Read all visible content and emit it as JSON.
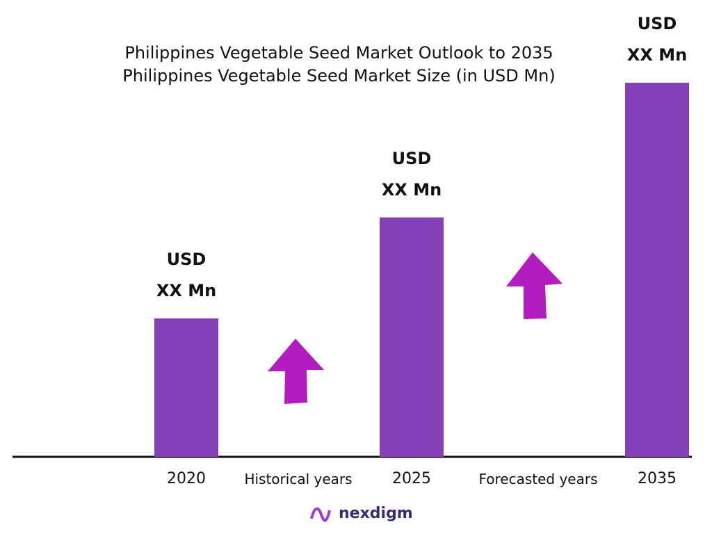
{
  "chart_data": {
    "type": "bar",
    "title": "Philippines Vegetable Seed Market Outlook to 2035",
    "subtitle": "Philippines Vegetable Seed Market Size (in USD Mn)",
    "categories": [
      "2020",
      "2025",
      "2035"
    ],
    "values": [
      37,
      64,
      100
    ],
    "value_labels": [
      "USD\nXX Mn",
      "USD\nXX Mn",
      "USD\nXX Mn"
    ],
    "color": "#8540b8",
    "ylim": [
      0,
      100
    ],
    "annotations": [
      "Historical years",
      "Forecasted years"
    ],
    "logo": "nexdigm"
  }
}
